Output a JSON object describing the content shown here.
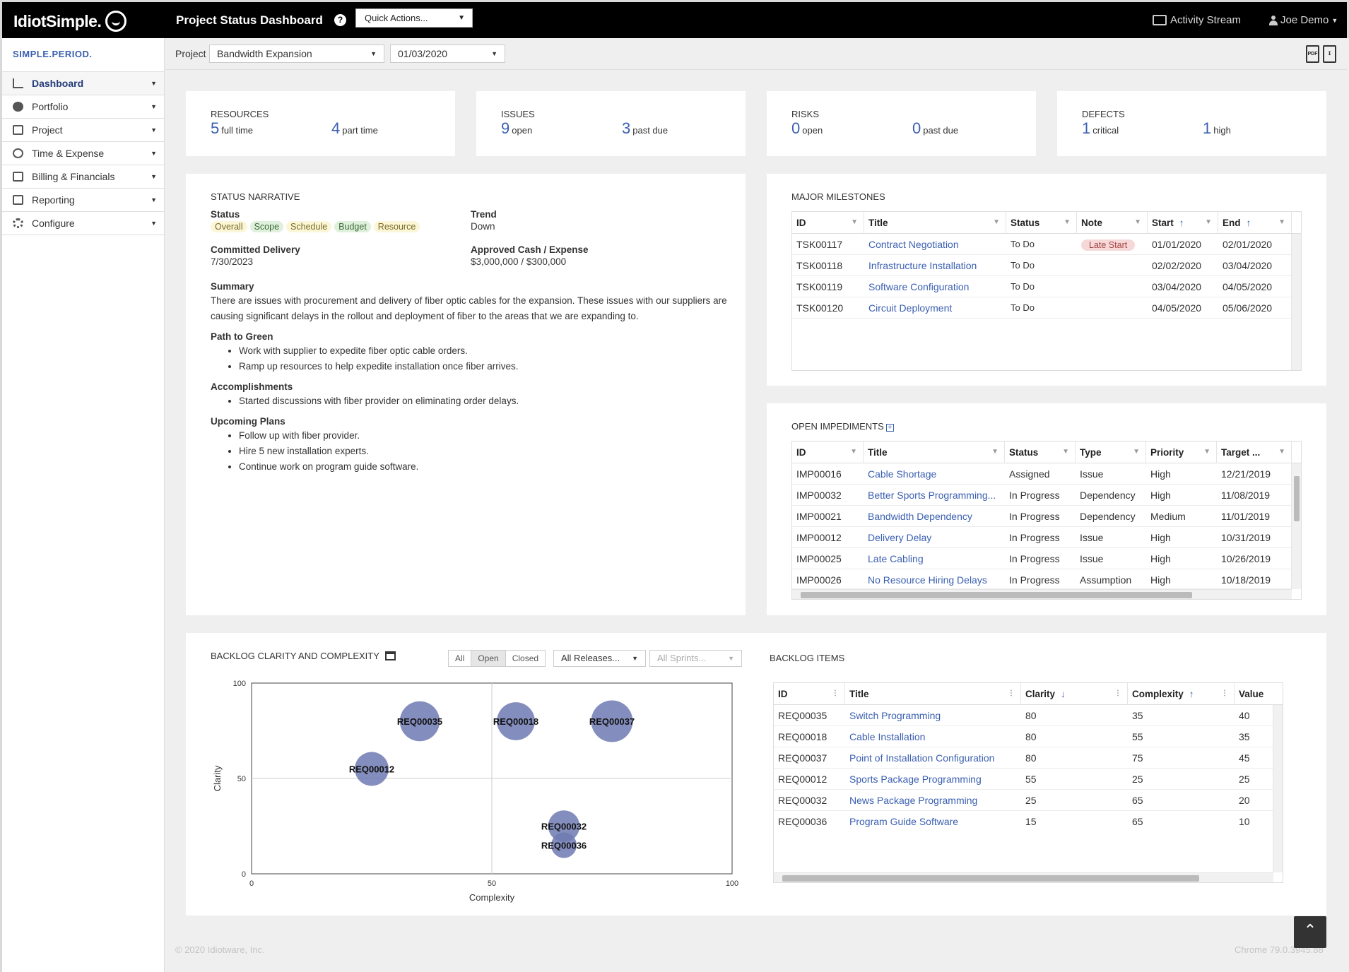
{
  "header": {
    "logo": "IdiotSimple.",
    "title": "Project Status Dashboard",
    "help": "?",
    "quick_actions": "Quick Actions...",
    "activity_stream": "Activity Stream",
    "user": "Joe Demo"
  },
  "sidebar": {
    "brand": "SIMPLE.PERIOD.",
    "items": [
      {
        "label": "Dashboard",
        "icon": "chart-icon"
      },
      {
        "label": "Portfolio",
        "icon": "pie-icon"
      },
      {
        "label": "Project",
        "icon": "calendar-icon"
      },
      {
        "label": "Time & Expense",
        "icon": "clock-icon"
      },
      {
        "label": "Billing & Financials",
        "icon": "card-icon"
      },
      {
        "label": "Reporting",
        "icon": "report-icon"
      },
      {
        "label": "Configure",
        "icon": "gear-icon"
      }
    ]
  },
  "subheader": {
    "project_label": "Project",
    "project": "Bandwidth Expansion",
    "date": "01/03/2020"
  },
  "kpis": {
    "resources": {
      "title": "RESOURCES",
      "a_num": "5",
      "a_label": "full time",
      "b_num": "4",
      "b_label": "part time"
    },
    "issues": {
      "title": "ISSUES",
      "a_num": "9",
      "a_label": "open",
      "b_num": "3",
      "b_label": "past due"
    },
    "risks": {
      "title": "RISKS",
      "a_num": "0",
      "a_label": "open",
      "b_num": "0",
      "b_label": "past due"
    },
    "defects": {
      "title": "DEFECTS",
      "a_num": "1",
      "a_label": "critical",
      "b_num": "1",
      "b_label": "high"
    }
  },
  "narrative": {
    "title": "STATUS NARRATIVE",
    "status_label": "Status",
    "tags": [
      "Overall",
      "Scope",
      "Schedule",
      "Budget",
      "Resource"
    ],
    "trend_label": "Trend",
    "trend": "Down",
    "delivery_label": "Committed Delivery",
    "delivery": "7/30/2023",
    "cash_label": "Approved Cash / Expense",
    "cash": "$3,000,000 / $300,000",
    "summary_label": "Summary",
    "summary": "There are issues with procurement and delivery of fiber optic cables for the expansion. These issues with our suppliers are causing significant delays in the rollout and deployment of fiber to the areas that we are expanding to.",
    "path_label": "Path to Green",
    "path": [
      "Work with supplier to expedite fiber optic cable orders.",
      "Ramp up resources to help expedite installation once fiber arrives."
    ],
    "acc_label": "Accomplishments",
    "acc": [
      "Started discussions with fiber provider on eliminating order delays."
    ],
    "plans_label": "Upcoming Plans",
    "plans": [
      "Follow up with fiber provider.",
      "Hire 5 new installation experts.",
      "Continue work on program guide software."
    ]
  },
  "milestones": {
    "title": "MAJOR MILESTONES",
    "columns": [
      "ID",
      "Title",
      "Status",
      "Note",
      "Start",
      "End"
    ],
    "rows": [
      [
        "TSK00117",
        "Contract Negotiation",
        "To Do",
        "Late Start",
        "01/01/2020",
        "02/01/2020"
      ],
      [
        "TSK00118",
        "Infrastructure Installation",
        "To Do",
        "",
        "02/02/2020",
        "03/04/2020"
      ],
      [
        "TSK00119",
        "Software Configuration",
        "To Do",
        "",
        "03/04/2020",
        "04/05/2020"
      ],
      [
        "TSK00120",
        "Circuit Deployment",
        "To Do",
        "",
        "04/05/2020",
        "05/06/2020"
      ]
    ]
  },
  "impediments": {
    "title": "OPEN IMPEDIMENTS",
    "columns": [
      "ID",
      "Title",
      "Status",
      "Type",
      "Priority",
      "Target ..."
    ],
    "rows": [
      [
        "IMP00016",
        "Cable Shortage",
        "Assigned",
        "Issue",
        "High",
        "12/21/2019"
      ],
      [
        "IMP00032",
        "Better Sports Programming...",
        "In Progress",
        "Dependency",
        "High",
        "11/08/2019"
      ],
      [
        "IMP00021",
        "Bandwidth Dependency",
        "In Progress",
        "Dependency",
        "Medium",
        "11/01/2019"
      ],
      [
        "IMP00012",
        "Delivery Delay",
        "In Progress",
        "Issue",
        "High",
        "10/31/2019"
      ],
      [
        "IMP00025",
        "Late Cabling",
        "In Progress",
        "Issue",
        "High",
        "10/26/2019"
      ],
      [
        "IMP00026",
        "No Resource Hiring Delays",
        "In Progress",
        "Assumption",
        "High",
        "10/18/2019"
      ]
    ]
  },
  "backlog_chart": {
    "title": "BACKLOG CLARITY AND COMPLEXITY",
    "filters": [
      "All",
      "Open",
      "Closed"
    ],
    "active_filter": "Open",
    "releases": "All Releases...",
    "sprints": "All Sprints..."
  },
  "chart_data": {
    "type": "scatter",
    "title": "",
    "xlabel": "Complexity",
    "ylabel": "Clarity",
    "xlim": [
      0,
      100
    ],
    "ylim": [
      0,
      100
    ],
    "xticks": [
      0,
      50,
      100
    ],
    "yticks": [
      0,
      50,
      100
    ],
    "grid": true,
    "color": "#6f7ab3",
    "points": [
      {
        "label": "REQ00035",
        "x": 35,
        "y": 80,
        "size": 40
      },
      {
        "label": "REQ00018",
        "x": 55,
        "y": 80,
        "size": 35
      },
      {
        "label": "REQ00037",
        "x": 75,
        "y": 80,
        "size": 45
      },
      {
        "label": "REQ00012",
        "x": 25,
        "y": 55,
        "size": 25
      },
      {
        "label": "REQ00032",
        "x": 65,
        "y": 25,
        "size": 20
      },
      {
        "label": "REQ00036",
        "x": 65,
        "y": 15,
        "size": 10
      }
    ]
  },
  "backlog_items": {
    "title": "BACKLOG ITEMS",
    "columns": [
      "ID",
      "Title",
      "Clarity",
      "Complexity",
      "Value"
    ],
    "rows": [
      [
        "REQ00035",
        "Switch Programming",
        "80",
        "35",
        "40"
      ],
      [
        "REQ00018",
        "Cable Installation",
        "80",
        "55",
        "35"
      ],
      [
        "REQ00037",
        "Point of Installation Configuration",
        "80",
        "75",
        "45"
      ],
      [
        "REQ00012",
        "Sports Package Programming",
        "55",
        "25",
        "25"
      ],
      [
        "REQ00032",
        "News Package Programming",
        "25",
        "65",
        "20"
      ],
      [
        "REQ00036",
        "Program Guide Software",
        "15",
        "65",
        "10"
      ]
    ]
  },
  "footer": {
    "copyright": "© 2020 Idiotware, Inc.",
    "browser": "Chrome 79.0.3945.88"
  }
}
